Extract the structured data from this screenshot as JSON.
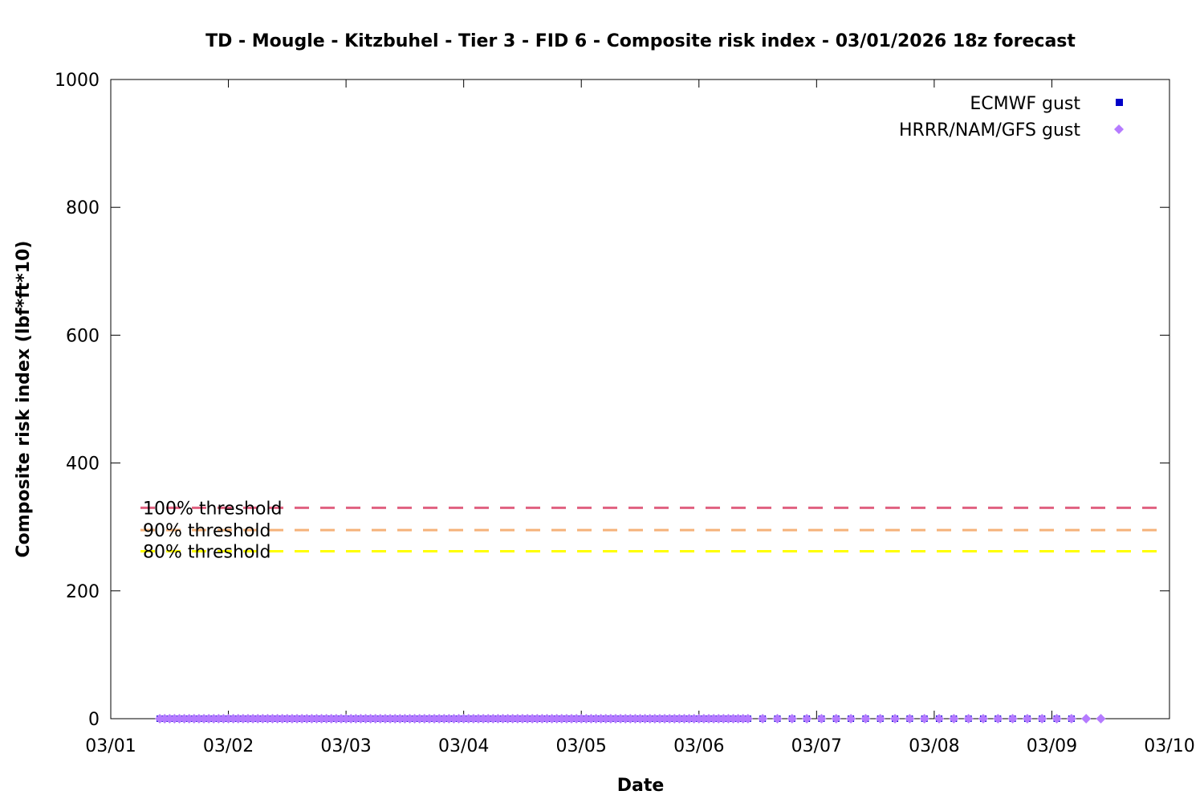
{
  "chart_data": {
    "type": "scatter",
    "title": "TD - Mougle - Kitzbuhel - Tier 3 - FID 6 - Composite risk index - 03/01/2026 18z forecast",
    "xlabel": "Date",
    "ylabel": "Composite risk index (lbf*ft*10)",
    "xlim": [
      "2026-03-01",
      "2026-03-10"
    ],
    "ylim": [
      0,
      1000
    ],
    "x_ticks": [
      "03/01",
      "03/02",
      "03/03",
      "03/04",
      "03/05",
      "03/06",
      "03/07",
      "03/08",
      "03/09",
      "03/10"
    ],
    "y_ticks": [
      "0",
      "200",
      "400",
      "600",
      "800",
      "1000"
    ],
    "grid": false,
    "legend_position": "top-right",
    "thresholds": [
      {
        "label": "100% threshold",
        "value": 330,
        "color": "#e06080"
      },
      {
        "label": "90% threshold",
        "value": 295,
        "color": "#f5b27a"
      },
      {
        "label": "80% threshold",
        "value": 262,
        "color": "#ffff00"
      }
    ],
    "series": [
      {
        "name": "ECMWF gust",
        "color": "#0000c8",
        "marker": "square",
        "x_start": "2026-03-01 10:00",
        "x_end": "2026-03-06 10:00",
        "step_hours": 1,
        "x_start_sparse": "2026-03-06 13:00",
        "x_end_sparse": "2026-03-09 04:00",
        "step_hours_sparse": 3,
        "value": 0
      },
      {
        "name": "HRRR/NAM/GFS gust",
        "color": "#b57bff",
        "marker": "diamond",
        "x_start": "2026-03-01 10:00",
        "x_end": "2026-03-06 10:00",
        "step_hours": 1,
        "x_start_sparse": "2026-03-06 13:00",
        "x_end_sparse": "2026-03-09 10:00",
        "step_hours_sparse": 3,
        "value": 0
      }
    ]
  }
}
